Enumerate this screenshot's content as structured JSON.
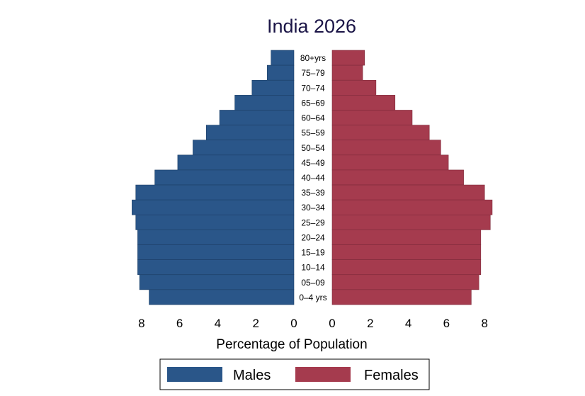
{
  "chart_data": {
    "type": "bar",
    "orientation": "horizontal-pyramid",
    "title": "India 2026",
    "xlabel": "Percentage of Population",
    "xlim": [
      0,
      8
    ],
    "xticks": [
      "8",
      "6",
      "4",
      "2",
      "0",
      "0",
      "2",
      "4",
      "6",
      "8"
    ],
    "grid": false,
    "legend_position": "bottom",
    "categories": [
      "80+yrs",
      "75–79",
      "70–74",
      "65–69",
      "60–64",
      "55–59",
      "50–54",
      "45–49",
      "40–44",
      "35–39",
      "30–34",
      "25–29",
      "20–24",
      "15–19",
      "10–14",
      "05–09",
      "0–4 yrs"
    ],
    "series": [
      {
        "name": "Males",
        "color": "#2a5689",
        "values": [
          1.2,
          1.4,
          2.2,
          3.1,
          3.9,
          4.6,
          5.3,
          6.1,
          7.3,
          8.3,
          8.5,
          8.3,
          8.2,
          8.2,
          8.2,
          8.1,
          7.6
        ]
      },
      {
        "name": "Females",
        "color": "#a53b4e",
        "values": [
          1.7,
          1.6,
          2.3,
          3.3,
          4.2,
          5.1,
          5.7,
          6.1,
          6.9,
          8.0,
          8.4,
          8.3,
          7.8,
          7.8,
          7.8,
          7.7,
          7.3
        ]
      }
    ]
  }
}
